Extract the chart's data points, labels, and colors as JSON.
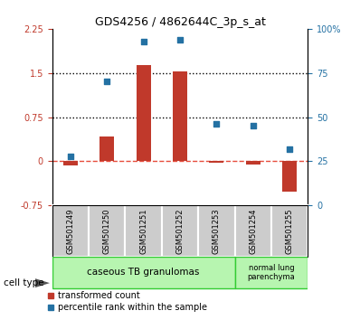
{
  "title": "GDS4256 / 4862644C_3p_s_at",
  "samples": [
    "GSM501249",
    "GSM501250",
    "GSM501251",
    "GSM501252",
    "GSM501253",
    "GSM501254",
    "GSM501255"
  ],
  "transformed_count": [
    -0.07,
    0.42,
    1.63,
    1.53,
    -0.03,
    -0.05,
    -0.52
  ],
  "percentile_rank": [
    28,
    70,
    93,
    94,
    46,
    45,
    32
  ],
  "ylim_left": [
    -0.75,
    2.25
  ],
  "ylim_right": [
    0,
    100
  ],
  "yticks_left": [
    -0.75,
    0,
    0.75,
    1.5,
    2.25
  ],
  "yticks_right": [
    0,
    25,
    50,
    75,
    100
  ],
  "hlines": [
    0.75,
    1.5
  ],
  "bar_color": "#c0392b",
  "dot_color": "#2471a3",
  "zero_line_color": "#e74c3c",
  "dotted_line_color": "black",
  "group1_label": "caseous TB granulomas",
  "group1_indices": [
    0,
    1,
    2,
    3,
    4
  ],
  "group2_label": "normal lung\nparenchyma",
  "group2_indices": [
    5,
    6
  ],
  "cell_type_label": "cell type",
  "legend_bar_label": "transformed count",
  "legend_dot_label": "percentile rank within the sample",
  "bar_width": 0.4,
  "group1_color": "#b7f5b0",
  "group2_color": "#b7f5b0",
  "tick_bg_color": "#cccccc",
  "group_border_color": "#33cc33"
}
